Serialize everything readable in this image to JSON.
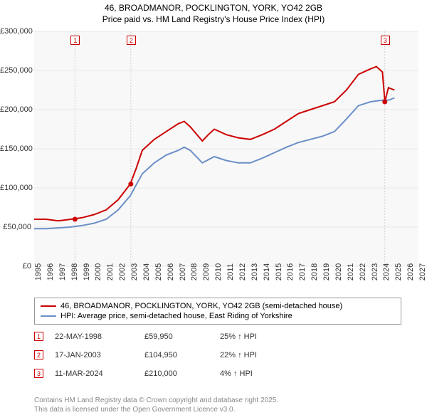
{
  "title_line1": "46, BROADMANOR, POCKLINGTON, YORK, YO42 2GB",
  "title_line2": "Price paid vs. HM Land Registry's House Price Index (HPI)",
  "chart": {
    "type": "line",
    "bg": "#f8f8f8",
    "grid_color": "#e8e8e8",
    "ylim": [
      0,
      300000
    ],
    "yticks": [
      0,
      50000,
      100000,
      150000,
      200000,
      250000,
      300000
    ],
    "ytick_labels": [
      "£0",
      "£50,000",
      "£100,000",
      "£150,000",
      "£200,000",
      "£250,000",
      "£300,000"
    ],
    "xlim": [
      1995,
      2027
    ],
    "xticks": [
      1995,
      1996,
      1997,
      1998,
      1999,
      2000,
      2001,
      2002,
      2003,
      2004,
      2005,
      2006,
      2007,
      2008,
      2009,
      2010,
      2011,
      2012,
      2013,
      2014,
      2015,
      2016,
      2017,
      2018,
      2019,
      2020,
      2021,
      2022,
      2023,
      2024,
      2025,
      2026,
      2027
    ],
    "series": [
      {
        "name": "46, BROADMANOR, POCKLINGTON, YORK, YO42 2GB (semi-detached house)",
        "color": "#cc0000",
        "width": 2,
        "points": [
          [
            1995,
            60000
          ],
          [
            1996,
            60000
          ],
          [
            1997,
            58000
          ],
          [
            1998,
            59950
          ],
          [
            1999,
            62000
          ],
          [
            2000,
            66000
          ],
          [
            2001,
            72000
          ],
          [
            2002,
            85000
          ],
          [
            2003,
            104950
          ],
          [
            2003.5,
            125000
          ],
          [
            2004,
            148000
          ],
          [
            2005,
            162000
          ],
          [
            2006,
            172000
          ],
          [
            2007,
            182000
          ],
          [
            2007.5,
            185000
          ],
          [
            2008,
            178000
          ],
          [
            2009,
            160000
          ],
          [
            2009.5,
            168000
          ],
          [
            2010,
            175000
          ],
          [
            2011,
            168000
          ],
          [
            2012,
            164000
          ],
          [
            2013,
            162000
          ],
          [
            2014,
            168000
          ],
          [
            2015,
            175000
          ],
          [
            2016,
            185000
          ],
          [
            2017,
            195000
          ],
          [
            2018,
            200000
          ],
          [
            2019,
            205000
          ],
          [
            2020,
            210000
          ],
          [
            2021,
            225000
          ],
          [
            2022,
            245000
          ],
          [
            2023,
            252000
          ],
          [
            2023.5,
            255000
          ],
          [
            2024,
            248000
          ],
          [
            2024.2,
            210000
          ],
          [
            2024.5,
            228000
          ],
          [
            2025,
            225000
          ]
        ]
      },
      {
        "name": "HPI: Average price, semi-detached house, East Riding of Yorkshire",
        "color": "#6b8fc7",
        "width": 2,
        "points": [
          [
            1995,
            48000
          ],
          [
            1996,
            48000
          ],
          [
            1997,
            49000
          ],
          [
            1998,
            50000
          ],
          [
            1999,
            52000
          ],
          [
            2000,
            55000
          ],
          [
            2001,
            60000
          ],
          [
            2002,
            72000
          ],
          [
            2003,
            90000
          ],
          [
            2004,
            118000
          ],
          [
            2005,
            132000
          ],
          [
            2006,
            142000
          ],
          [
            2007,
            148000
          ],
          [
            2007.5,
            152000
          ],
          [
            2008,
            148000
          ],
          [
            2009,
            132000
          ],
          [
            2010,
            140000
          ],
          [
            2011,
            135000
          ],
          [
            2012,
            132000
          ],
          [
            2013,
            132000
          ],
          [
            2014,
            138000
          ],
          [
            2015,
            145000
          ],
          [
            2016,
            152000
          ],
          [
            2017,
            158000
          ],
          [
            2018,
            162000
          ],
          [
            2019,
            166000
          ],
          [
            2020,
            172000
          ],
          [
            2021,
            188000
          ],
          [
            2022,
            205000
          ],
          [
            2023,
            210000
          ],
          [
            2024,
            212000
          ],
          [
            2024.5,
            212000
          ],
          [
            2025,
            215000
          ]
        ]
      }
    ],
    "sale_markers": [
      {
        "n": "1",
        "x": 1998.4,
        "y": 59950
      },
      {
        "n": "2",
        "x": 2003.05,
        "y": 104950
      },
      {
        "n": "3",
        "x": 2024.2,
        "y": 210000
      }
    ],
    "vline_color": "#d0d0d0",
    "vline_dash": "2,2",
    "point_color": "#cc0000"
  },
  "legend": {
    "series1_label": "46, BROADMANOR, POCKLINGTON, YORK, YO42 2GB (semi-detached house)",
    "series2_label": "HPI: Average price, semi-detached house, East Riding of Yorkshire",
    "series1_color": "#cc0000",
    "series2_color": "#6b8fc7"
  },
  "sales": [
    {
      "n": "1",
      "date": "22-MAY-1998",
      "price": "£59,950",
      "pct": "25% ↑ HPI"
    },
    {
      "n": "2",
      "date": "17-JAN-2003",
      "price": "£104,950",
      "pct": "22% ↑ HPI"
    },
    {
      "n": "3",
      "date": "11-MAR-2024",
      "price": "£210,000",
      "pct": "4% ↑ HPI"
    }
  ],
  "footer_line1": "Contains HM Land Registry data © Crown copyright and database right 2025.",
  "footer_line2": "This data is licensed under the Open Government Licence v3.0."
}
